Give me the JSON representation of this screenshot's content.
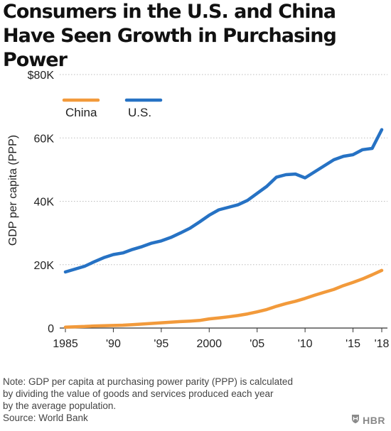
{
  "title": "Consumers in the U.S. and China Have Seen Growth in Purchasing Power",
  "colors": {
    "china": "#f29a3b",
    "us": "#2672c4",
    "grid": "#bdbdbd"
  },
  "note_lines": [
    "Note: GDP per capita at purchasing power parity (PPP) is calculated",
    "by dividing the value of goods and services produced each year",
    "by the average population."
  ],
  "source": "Source: World Bank",
  "brand": {
    "label": "HBR",
    "icon": "hbr-shield-icon"
  },
  "chart_data": {
    "type": "line",
    "title": "Consumers in the U.S. and China Have Seen Growth in Purchasing Power",
    "xlabel": "",
    "ylabel": "GDP per capita (PPP)",
    "xlim": [
      1985,
      2018
    ],
    "ylim": [
      0,
      80000
    ],
    "x_ticks": [
      1985,
      1990,
      1995,
      2000,
      2005,
      2010,
      2015,
      2018
    ],
    "x_tick_labels": [
      "1985",
      "'90",
      "'95",
      "2000",
      "'05",
      "'10",
      "'15",
      "'18"
    ],
    "y_ticks": [
      0,
      20000,
      40000,
      60000,
      80000
    ],
    "y_tick_labels": [
      "0",
      "20K",
      "40K",
      "60K",
      "$80K"
    ],
    "grid": "horizontal",
    "legend_position": "top-left",
    "x": [
      1985,
      1986,
      1987,
      1988,
      1989,
      1990,
      1991,
      1992,
      1993,
      1994,
      1995,
      1996,
      1997,
      1998,
      1999,
      2000,
      2001,
      2002,
      2003,
      2004,
      2005,
      2006,
      2007,
      2008,
      2009,
      2010,
      2011,
      2012,
      2013,
      2014,
      2015,
      2016,
      2017,
      2018
    ],
    "series": [
      {
        "name": "China",
        "color": "#f29a3b",
        "values": [
          300,
          400,
          500,
          650,
          750,
          800,
          900,
          1050,
          1250,
          1450,
          1650,
          1850,
          2050,
          2200,
          2400,
          2900,
          3200,
          3550,
          3950,
          4450,
          5100,
          5850,
          6850,
          7700,
          8450,
          9350,
          10350,
          11300,
          12200,
          13400,
          14400,
          15500,
          16800,
          18200
        ]
      },
      {
        "name": "U.S.",
        "color": "#2672c4",
        "values": [
          17700,
          18600,
          19500,
          20900,
          22200,
          23200,
          23700,
          24800,
          25700,
          26800,
          27500,
          28600,
          30000,
          31500,
          33500,
          35600,
          37300,
          38100,
          38900,
          40300,
          42500,
          44700,
          47600,
          48400,
          48600,
          47400,
          49300,
          51200,
          53100,
          54200,
          54700,
          56300,
          56700,
          62600
        ]
      }
    ]
  }
}
